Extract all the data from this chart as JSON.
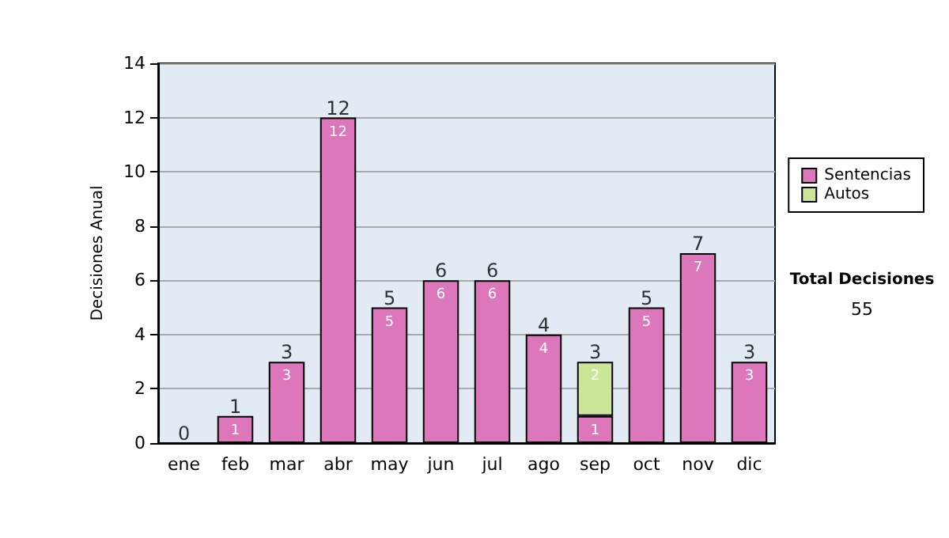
{
  "chart_data": {
    "type": "bar",
    "stacked": true,
    "ylabel": "Decisiones Anual",
    "categories": [
      "ene",
      "feb",
      "mar",
      "abr",
      "may",
      "jun",
      "jul",
      "ago",
      "sep",
      "oct",
      "nov",
      "dic"
    ],
    "series": [
      {
        "name": "Sentencias",
        "color": "#dd77bb",
        "values": [
          0,
          1,
          3,
          12,
          5,
          6,
          6,
          4,
          1,
          5,
          7,
          3
        ],
        "value_labels": [
          null,
          "1",
          "3",
          "12",
          "5",
          "6",
          "6",
          "4",
          "1",
          "5",
          "7",
          "3"
        ]
      },
      {
        "name": "Autos",
        "color": "#cce699",
        "values": [
          0,
          0,
          0,
          0,
          0,
          0,
          0,
          0,
          2,
          0,
          0,
          0
        ],
        "value_labels": [
          null,
          null,
          null,
          null,
          null,
          null,
          null,
          null,
          "2",
          null,
          null,
          null
        ]
      }
    ],
    "totals": [
      "0",
      "1",
      "3",
      "12",
      "5",
      "6",
      "6",
      "4",
      "3",
      "5",
      "7",
      "3"
    ],
    "ylim": [
      0,
      14
    ],
    "yticks": [
      0,
      2,
      4,
      6,
      8,
      10,
      12,
      14
    ],
    "grid": "y",
    "legend": "right",
    "annotations": [
      "Total Decisiones",
      "55"
    ]
  }
}
